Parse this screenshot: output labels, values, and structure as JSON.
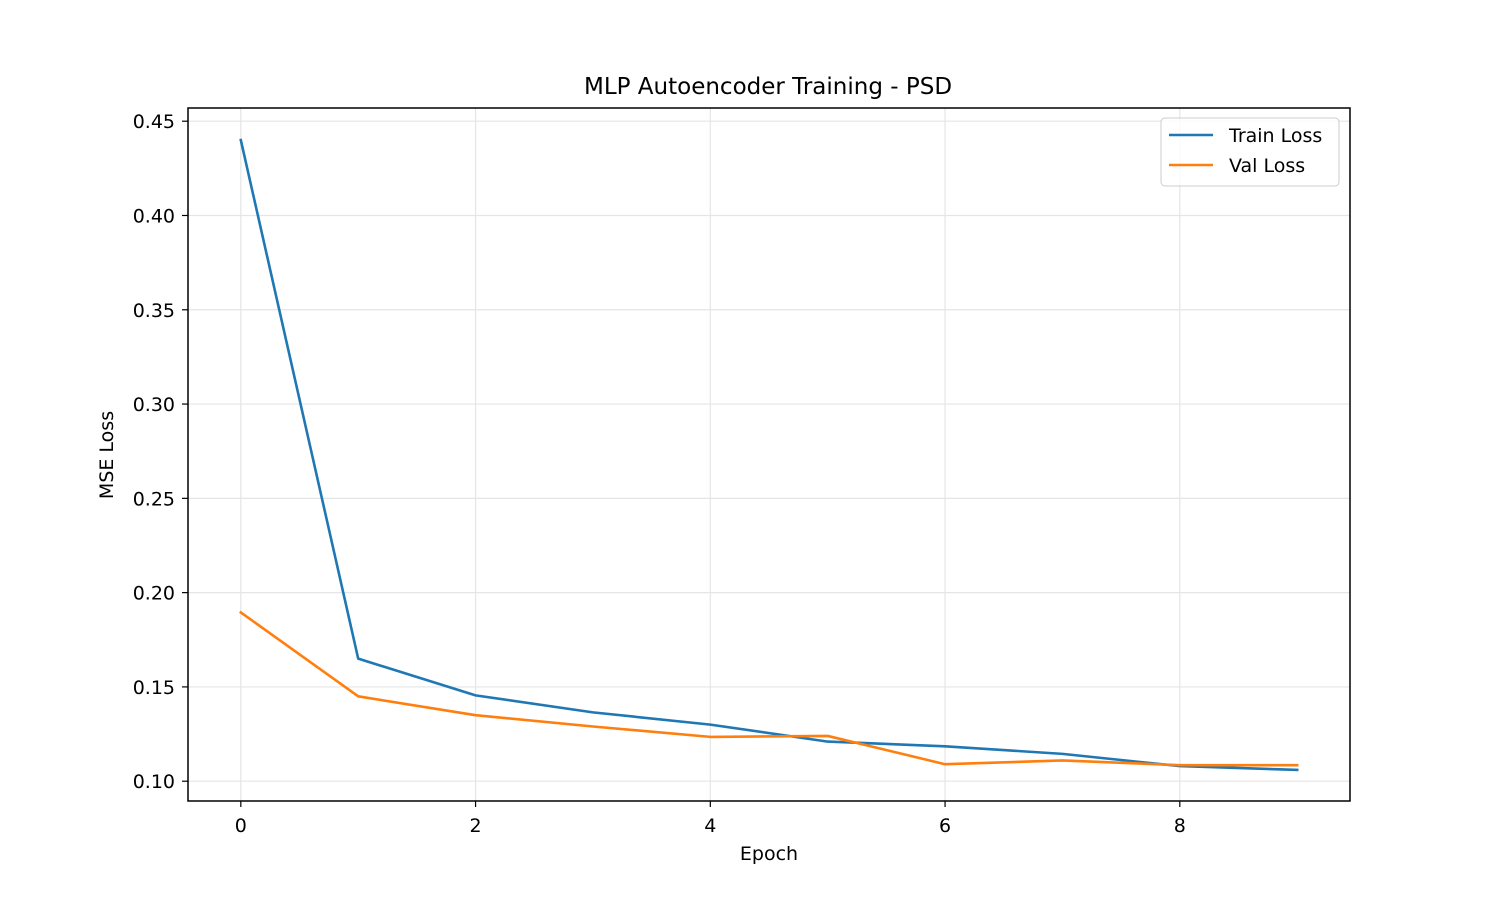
{
  "chart_data": {
    "type": "line",
    "title": "MLP Autoencoder Training - PSD",
    "xlabel": "Epoch",
    "ylabel": "MSE Loss",
    "x": [
      0,
      1,
      2,
      3,
      4,
      5,
      6,
      7,
      8,
      9
    ],
    "xlim": [
      -0.45,
      9.45
    ],
    "ylim": [
      0.0895,
      0.457
    ],
    "xticks": [
      0,
      2,
      4,
      6,
      8
    ],
    "xtick_labels": [
      "0",
      "2",
      "4",
      "6",
      "8"
    ],
    "yticks": [
      0.1,
      0.15,
      0.2,
      0.25,
      0.3,
      0.35,
      0.4,
      0.45
    ],
    "ytick_labels": [
      "0.10",
      "0.15",
      "0.20",
      "0.25",
      "0.30",
      "0.35",
      "0.40",
      "0.45"
    ],
    "grid": true,
    "legend_position": "top-right",
    "series": [
      {
        "name": "Train Loss",
        "color": "#1f77b4",
        "values": [
          0.44,
          0.165,
          0.1455,
          0.1365,
          0.13,
          0.121,
          0.1185,
          0.1145,
          0.108,
          0.106
        ]
      },
      {
        "name": "Val Loss",
        "color": "#ff7f0e",
        "values": [
          0.1895,
          0.145,
          0.135,
          0.129,
          0.1235,
          0.124,
          0.109,
          0.111,
          0.1085,
          0.1085
        ]
      }
    ]
  }
}
